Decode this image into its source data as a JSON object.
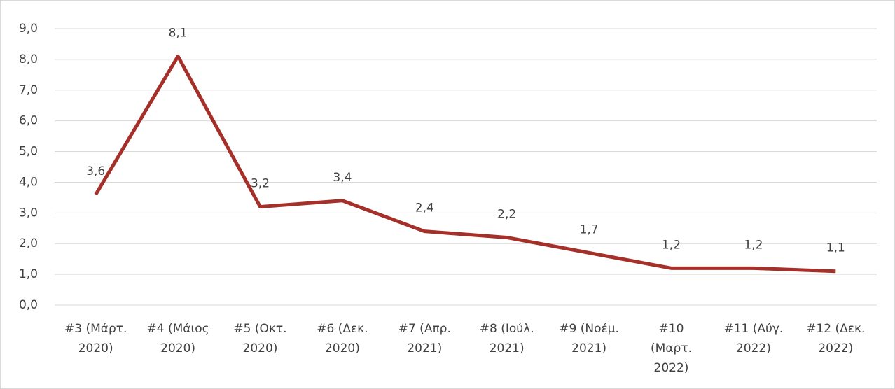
{
  "chart_data": {
    "type": "line",
    "categories": [
      [
        "#3 (Μάρτ.",
        "2020)"
      ],
      [
        "#4 (Μάιος",
        "2020)"
      ],
      [
        "#5 (Οκτ.",
        "2020)"
      ],
      [
        "#6 (Δεκ.",
        "2020)"
      ],
      [
        "#7 (Απρ.",
        "2021)"
      ],
      [
        "#8 (Ιούλ.",
        "2021)"
      ],
      [
        "#9 (Νοέμ.",
        "2021)"
      ],
      [
        "#10",
        "(Μαρτ.",
        "2022)"
      ],
      [
        "#11 (Αύγ.",
        "2022)"
      ],
      [
        "#12 (Δεκ.",
        "2022)"
      ]
    ],
    "series": [
      {
        "color": "#a5302a",
        "values": [
          3.6,
          8.1,
          3.2,
          3.4,
          2.4,
          2.2,
          1.7,
          1.2,
          1.2,
          1.1
        ],
        "value_labels": [
          "3,6",
          "8,1",
          "3,2",
          "3,4",
          "2,4",
          "2,2",
          "1,7",
          "1,2",
          "1,2",
          "1,1"
        ]
      }
    ],
    "ylim": [
      0,
      9
    ],
    "yticks": [
      {
        "value": 0,
        "label": "0,0"
      },
      {
        "value": 1,
        "label": "1,0"
      },
      {
        "value": 2,
        "label": "2,0"
      },
      {
        "value": 3,
        "label": "3,0"
      },
      {
        "value": 4,
        "label": "4,0"
      },
      {
        "value": 5,
        "label": "5,0"
      },
      {
        "value": 6,
        "label": "6,0"
      },
      {
        "value": 7,
        "label": "7,0"
      },
      {
        "value": 8,
        "label": "8,0"
      },
      {
        "value": 9,
        "label": "9,0"
      }
    ],
    "grid": true
  }
}
